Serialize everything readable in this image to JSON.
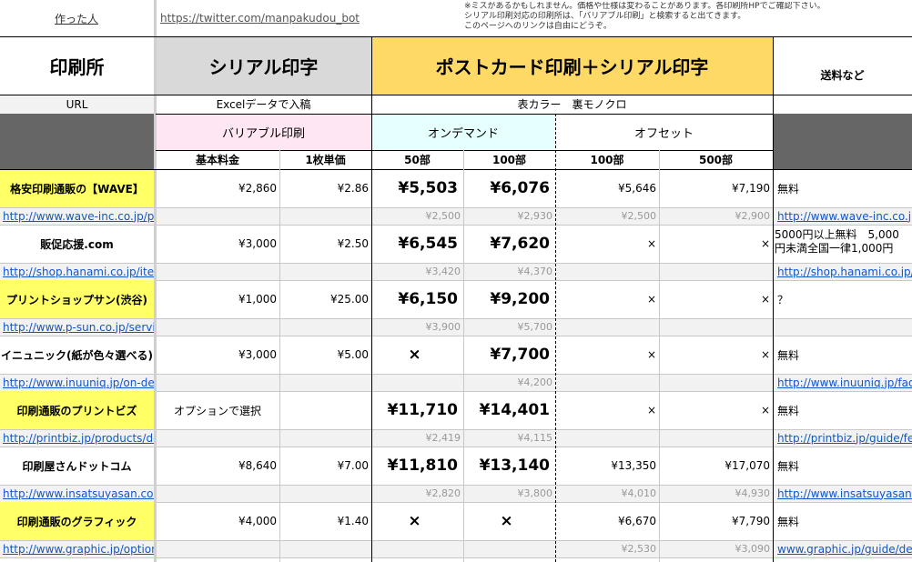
{
  "header": {
    "author_label": "作った人",
    "author_url": "https://twitter.com/manpakudou_bot",
    "notes": [
      "※ミスがあるかもしれません。価格や仕様は変わることがあります。各印刷所HPでご確認下さい。",
      "シリアル印刷対応の印刷所は、「バリアブル印刷」と検索すると出てきます。",
      "このページへのリンクは自由にどうぞ。"
    ]
  },
  "columns": {
    "printer": "印刷所",
    "serial": "シリアル印字",
    "postcard": "ポストカード印刷＋シリアル印字",
    "shipping": "送料など",
    "url": "URL",
    "excel_note": "Excelデータで入稿",
    "color_note": "表カラー　裏モノクロ",
    "variable": "バリアブル印刷",
    "ondemand": "オンデマンド",
    "offset": "オフセット",
    "base_fee": "基本料金",
    "unit_price": "1枚単価",
    "q50": "50部",
    "q100": "100部",
    "q100b": "100部",
    "q500": "500部"
  },
  "colors": {
    "yellow_name": "#ffff66",
    "gray_header": "#666666",
    "serial_bg": "#d9d9d9",
    "postcard_bg": "#ffd966",
    "variable_bg": "#ffe6f2",
    "ondemand_bg": "#e6ffff",
    "link": "#1155cc"
  },
  "rows": [
    {
      "name": "格安印刷通販の【WAVE】",
      "highlight": true,
      "url": "http://www.wave-inc.co.jp/pr",
      "base": "¥2,860",
      "unit": "¥2.86",
      "od50": "¥5,503",
      "od100": "¥6,076",
      "of100": "¥5,646",
      "of500": "¥7,190",
      "ship": "無料",
      "sub_od50": "¥2,500",
      "sub_od100": "¥2,930",
      "sub_of100": "¥2,500",
      "sub_of500": "¥2,900",
      "ship_url": "http://www.wave-inc.co.jp"
    },
    {
      "name": "販促応援.com",
      "highlight": false,
      "url": "http://shop.hanami.co.jp/iten",
      "base": "¥3,000",
      "unit": "¥2.50",
      "od50": "¥6,545",
      "od100": "¥7,620",
      "of100": "×",
      "of500": "×",
      "ship": "5000円以上無料　5,000",
      "ship2": "円未満全国一律1,000円",
      "sub_od50": "¥3,420",
      "sub_od100": "¥4,370",
      "sub_of100": "",
      "sub_of500": "",
      "ship_url": "http://shop.hanami.co.jp/c"
    },
    {
      "name": "プリントショップサン(渋谷)",
      "highlight": true,
      "url": "http://www.p-sun.co.jp/servic",
      "base": "¥1,000",
      "unit": "¥25.00",
      "od50": "¥6,150",
      "od100": "¥9,200",
      "of100": "×",
      "of500": "×",
      "ship": "？",
      "sub_od50": "¥3,900",
      "sub_od100": "¥5,700",
      "sub_of100": "",
      "sub_of500": "",
      "ship_url": ""
    },
    {
      "name": "イニュニック(紙が色々選べる)",
      "highlight": false,
      "url": "http://www.inuuniq.jp/on-dem",
      "base": "¥3,000",
      "unit": "¥5.00",
      "od50": "×",
      "od100": "¥7,700",
      "of100": "×",
      "of500": "×",
      "ship": "無料",
      "sub_od50": "",
      "sub_od100": "¥4,200",
      "sub_of100": "",
      "sub_of500": "",
      "ship_url": "http://www.inuuniq.jp/faq/"
    },
    {
      "name": "印刷通販のプリントビズ",
      "highlight": true,
      "url": "http://printbiz.jp/products/det",
      "base": "オプションで選択",
      "unit": "",
      "od50": "¥11,710",
      "od100": "¥14,401",
      "of100": "×",
      "of500": "×",
      "ship": "無料",
      "sub_od50": "¥2,419",
      "sub_od100": "¥4,115",
      "sub_of100": "",
      "sub_of500": "",
      "ship_url": "http://printbiz.jp/guide/fe"
    },
    {
      "name": "印刷屋さんドットコム",
      "highlight": false,
      "url": "http://www.insatsuyasan.cor",
      "base": "¥8,640",
      "unit": "¥7.00",
      "od50": "¥11,810",
      "od100": "¥13,140",
      "of100": "¥13,350",
      "of500": "¥17,070",
      "ship": "無料",
      "sub_od50": "¥2,820",
      "sub_od100": "¥3,800",
      "sub_of100": "¥4,010",
      "sub_of500": "¥4,930",
      "ship_url": "http://www.insatsuyasan.c"
    },
    {
      "name": "印刷通販のグラフィック",
      "highlight": true,
      "url": "http://www.graphic.jp/option/",
      "base": "¥4,000",
      "unit": "¥1.40",
      "od50": "×",
      "od100": "×",
      "of100": "¥6,670",
      "of500": "¥7,790",
      "ship": "無料",
      "sub_od50": "",
      "sub_od100": "",
      "sub_of100": "¥2,530",
      "sub_of500": "¥3,090",
      "ship_url": "www.graphic.jp/guide/deli"
    }
  ]
}
